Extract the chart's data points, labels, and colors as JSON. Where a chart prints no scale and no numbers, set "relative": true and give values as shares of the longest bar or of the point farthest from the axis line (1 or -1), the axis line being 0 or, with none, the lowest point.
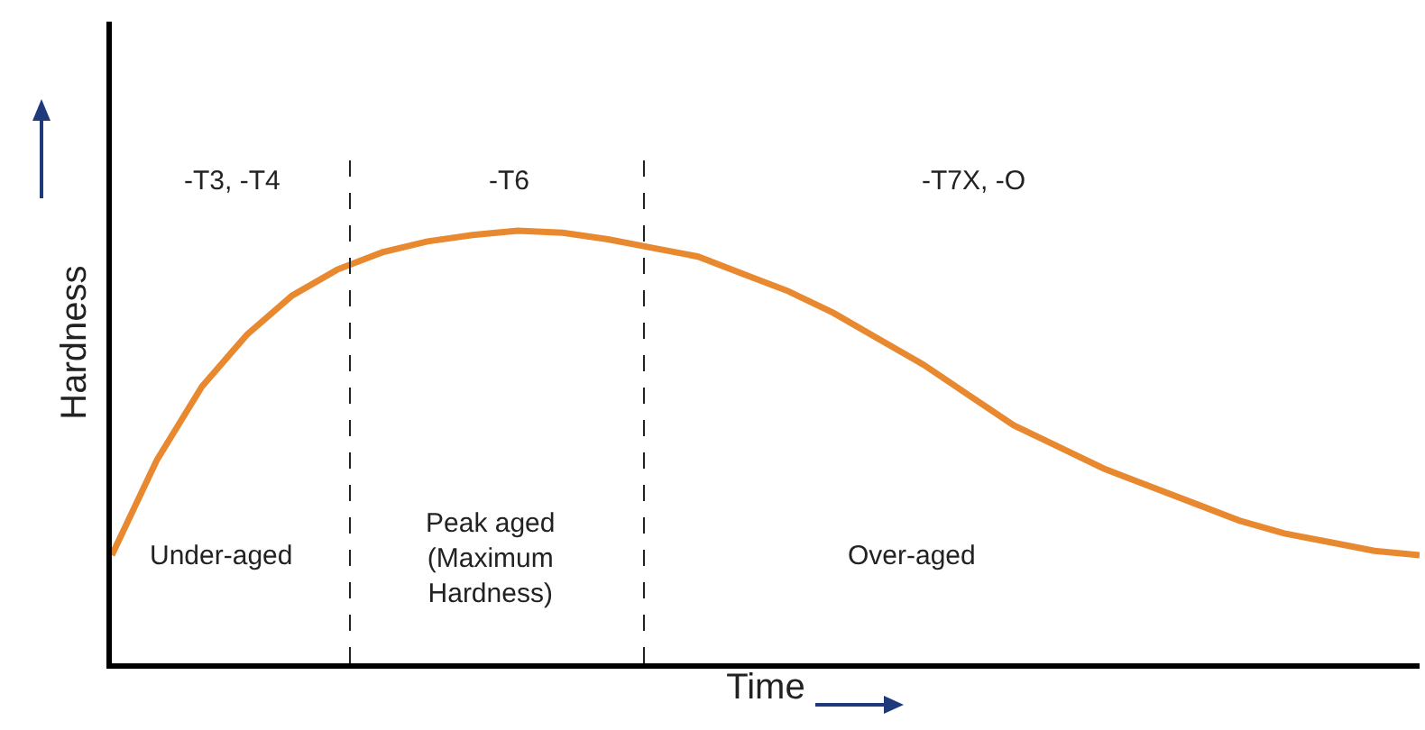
{
  "chart_data": {
    "type": "line",
    "relative": true,
    "xlabel": "Time",
    "ylabel": "Hardness",
    "categories": [
      null,
      null,
      null,
      null,
      null,
      null,
      null,
      null,
      null,
      null,
      null,
      null,
      null,
      null,
      null,
      null,
      null,
      null,
      null,
      null,
      null,
      null,
      null,
      null,
      null,
      null,
      null,
      null,
      null,
      null
    ],
    "series": [
      {
        "color": "#e8882f",
        "values": [
          0.25,
          0.47,
          0.64,
          0.76,
          0.85,
          0.91,
          0.95,
          0.975,
          0.99,
          1,
          0.995,
          0.98,
          0.96,
          0.94,
          0.9,
          0.86,
          0.81,
          0.75,
          0.69,
          0.62,
          0.55,
          0.5,
          0.45,
          0.41,
          0.37,
          0.33,
          0.3,
          0.28,
          0.26,
          0.25
        ]
      }
    ],
    "annotations": [
      "-T3, -T4",
      "-T6",
      "-T7X, -O",
      "Under-aged",
      "Peak aged (Maximum Hardness)",
      "Over-aged"
    ],
    "line_style": "solid"
  }
}
